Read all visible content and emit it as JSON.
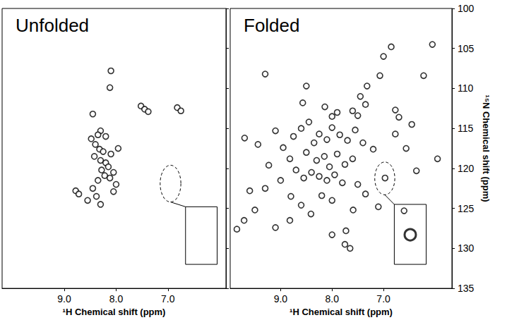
{
  "chart_data": [
    {
      "type": "scatter",
      "title": "Unfolded",
      "x_label": "¹H Chemical shift (ppm)",
      "y_label": "¹⁵N Chemical shift (ppm)",
      "xlim": [
        10.2,
        5.88
      ],
      "ylim": [
        135,
        100
      ],
      "xticks": [
        {
          "value": 9,
          "label": "9.0"
        },
        {
          "value": 8,
          "label": "8.0"
        },
        {
          "value": 7,
          "label": "7.0"
        }
      ],
      "yticks": [
        100,
        105,
        110,
        115,
        120,
        125,
        130,
        135
      ],
      "grid": false,
      "tick_labels": "x",
      "color": "#000000",
      "marker": "circle",
      "x": [
        8.1,
        8.12,
        7.52,
        7.45,
        7.38,
        6.82,
        6.75,
        8.45,
        8.3,
        8.35,
        8.2,
        8.4,
        8.32,
        8.25,
        8.1,
        8.42,
        8.3,
        8.2,
        8.15,
        8.28,
        8.05,
        8.22,
        8.12,
        8.35,
        8.78,
        8.72,
        8.45,
        8.38,
        8.3,
        8.05,
        8.0,
        8.55,
        7.96,
        8.48
      ],
      "values": [
        107.8,
        109.9,
        112.2,
        112.6,
        112.9,
        112.4,
        112.8,
        113.2,
        115.3,
        115.8,
        116.0,
        117.0,
        117.6,
        117.9,
        118.2,
        118.5,
        119.0,
        119.3,
        119.8,
        120.2,
        120.5,
        120.9,
        121.2,
        121.5,
        122.8,
        123.2,
        122.5,
        123.5,
        124.5,
        122.9,
        122.0,
        124.0,
        117.5,
        116.3
      ],
      "ellipse": {
        "x": [
          7.15,
          6.75
        ],
        "y": [
          119.6,
          124.2
        ]
      },
      "inset": {
        "x": [
          6.66,
          6.05
        ],
        "y": [
          124.8,
          132.0
        ]
      }
    },
    {
      "type": "scatter",
      "title": "Folded",
      "x_label": "¹H Chemical shift (ppm)",
      "y_label": "¹⁵N Chemical shift (ppm)",
      "xlim": [
        9.98,
        5.67
      ],
      "ylim": [
        135,
        100
      ],
      "xticks": [
        {
          "value": 9,
          "label": "9.0"
        },
        {
          "value": 8,
          "label": "8.0"
        },
        {
          "value": 7,
          "label": "7.0"
        }
      ],
      "yticks": [
        100,
        105,
        110,
        115,
        120,
        125,
        130,
        135
      ],
      "grid": false,
      "color": "#000000",
      "marker": "circle",
      "x": [
        9.3,
        8.5,
        8.57,
        8.14,
        7.32,
        7.07,
        6.22,
        6.05,
        6.85,
        7.0,
        8.0,
        7.9,
        7.6,
        7.5,
        7.35,
        7.45,
        6.77,
        6.7,
        9.7,
        9.44,
        9.23,
        9.1,
        8.82,
        8.95,
        8.75,
        8.6,
        8.45,
        8.35,
        8.25,
        8.1,
        8.0,
        7.85,
        7.7,
        7.55,
        7.4,
        7.2,
        8.5,
        8.3,
        8.15,
        8.05,
        7.9,
        7.75,
        7.6,
        8.4,
        8.25,
        8.1,
        7.95,
        7.8,
        8.55,
        8.7,
        9.0,
        9.3,
        6.97,
        6.36,
        5.95,
        6.77,
        6.56,
        6.45,
        9.71,
        9.5,
        9.1,
        8.82,
        8.41,
        8.0,
        7.59,
        8.0,
        7.73,
        7.35,
        7.1,
        8.8,
        8.6,
        7.5,
        9.6,
        9.85,
        7.65,
        7.75,
        6.6,
        8.2
      ],
      "values": [
        108.2,
        109.7,
        111.8,
        112.3,
        109.7,
        108.4,
        108.4,
        104.5,
        104.8,
        106.0,
        113.5,
        113.0,
        112.8,
        113.4,
        112.0,
        111.0,
        112.7,
        113.6,
        116.2,
        117.0,
        119.6,
        115.3,
        118.8,
        117.4,
        116.0,
        115.0,
        114.2,
        116.8,
        115.7,
        116.4,
        114.9,
        115.8,
        116.5,
        115.2,
        116.8,
        117.6,
        118.0,
        119.0,
        118.5,
        119.8,
        118.2,
        119.5,
        118.8,
        120.5,
        121.0,
        121.5,
        120.8,
        121.8,
        121.2,
        120.2,
        121.5,
        122.5,
        121.2,
        120.3,
        118.8,
        115.7,
        117.5,
        114.5,
        126.5,
        125.2,
        127.4,
        126.5,
        125.7,
        124.0,
        125.2,
        128.3,
        127.8,
        123.2,
        124.8,
        123.5,
        124.6,
        122.0,
        122.8,
        127.6,
        130.0,
        129.5,
        125.3,
        123.4
      ],
      "ellipse": {
        "x": [
          7.17,
          6.78
        ],
        "y": [
          119.2,
          123.3
        ]
      },
      "inset": {
        "x": [
          6.79,
          6.17
        ],
        "y": [
          124.5,
          132.0
        ]
      },
      "inset_peak": {
        "x": 6.48,
        "y": 128.3
      }
    }
  ]
}
